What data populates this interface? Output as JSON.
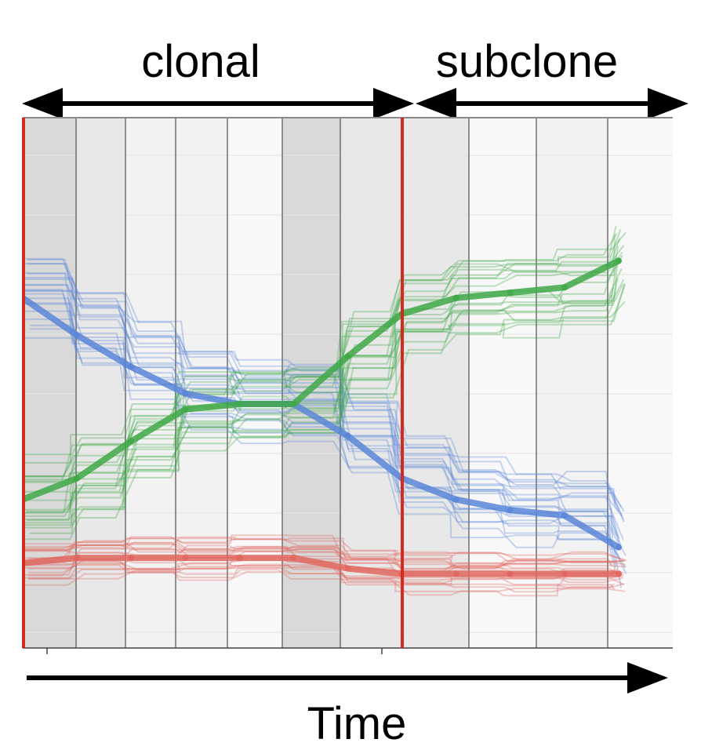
{
  "labels": {
    "clonal": "clonal",
    "subclone": "subclone",
    "time": "Time"
  },
  "colors": {
    "blue": "#5b86d8",
    "green": "#3fa847",
    "red": "#e0675f",
    "boundary": "#d42a1f",
    "arrow": "#000000",
    "band_dark": "#d9d9d9",
    "band_mid": "#e8e8e8",
    "band_light": "#f2f2f2",
    "band_lightest": "#f8f8f8",
    "divider": "#6f6f6f",
    "grid": "#e2e2e2"
  },
  "chart_data": {
    "type": "line",
    "title": "",
    "xlabel": "Time",
    "ylabel": "",
    "xlim": [
      0,
      12
    ],
    "ylim": [
      0,
      1
    ],
    "grid": true,
    "sections": [
      {
        "label": "clonal",
        "start": 0,
        "end": 7
      },
      {
        "label": "subclone",
        "start": 7,
        "end": 12
      }
    ],
    "boundaries": [
      0,
      7
    ],
    "x": [
      0,
      1,
      2,
      3,
      4,
      5,
      6,
      7,
      8,
      9,
      10,
      11
    ],
    "series": [
      {
        "color": "blue",
        "values": [
          0.66,
          0.59,
          0.53,
          0.48,
          0.46,
          0.46,
          0.4,
          0.32,
          0.28,
          0.26,
          0.25,
          0.19
        ]
      },
      {
        "color": "green",
        "values": [
          0.28,
          0.32,
          0.39,
          0.45,
          0.46,
          0.46,
          0.55,
          0.63,
          0.66,
          0.67,
          0.68,
          0.73
        ]
      },
      {
        "color": "red",
        "values": [
          0.16,
          0.17,
          0.17,
          0.17,
          0.17,
          0.17,
          0.15,
          0.14,
          0.14,
          0.14,
          0.14,
          0.14
        ]
      }
    ]
  }
}
